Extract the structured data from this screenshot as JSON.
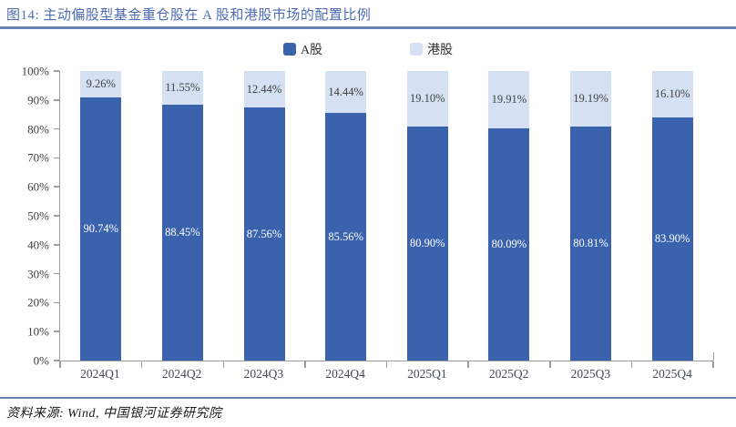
{
  "title": "图14:  主动偏股型基金重仓股在 A 股和港股市场的配置比例",
  "source": "资料来源:  Wind, 中国银河证券研究院",
  "colors": {
    "a_share_bar": "#3B63AD",
    "hk_share_bar": "#D5E0F2",
    "title_text": "#4C6CB1",
    "divider_rule": "#6B81B6",
    "axis_line": "#9D9D9D",
    "a_share_label": "#FFFFFF",
    "hk_share_label": "#404040"
  },
  "chart_data": {
    "type": "bar",
    "stacked": true,
    "title": "图14: 主动偏股型基金重仓股在 A 股和港股市场的配置比例",
    "categories": [
      "2024Q1",
      "2024Q2",
      "2024Q3",
      "2024Q4",
      "2025Q1",
      "2025Q2",
      "2025Q3",
      "2025Q4"
    ],
    "series": [
      {
        "name": "A股",
        "color": "#3B63AD",
        "values": [
          90.74,
          88.45,
          87.56,
          85.56,
          80.9,
          80.09,
          80.81,
          83.9
        ],
        "labels": [
          "90.74%",
          "88.45%",
          "87.56%",
          "85.56%",
          "80.90%",
          "80.09%",
          "80.81%",
          "83.90%"
        ]
      },
      {
        "name": "港股",
        "color": "#D5E0F2",
        "values": [
          9.26,
          11.55,
          12.44,
          14.44,
          19.1,
          19.91,
          19.19,
          16.1
        ],
        "labels": [
          "9.26%",
          "11.55%",
          "12.44%",
          "14.44%",
          "19.10%",
          "19.91%",
          "19.19%",
          "16.10%"
        ]
      }
    ],
    "ylim": [
      0,
      100
    ],
    "y_tick_step": 10,
    "y_tick_labels": [
      "0%",
      "10%",
      "20%",
      "30%",
      "40%",
      "50%",
      "60%",
      "70%",
      "80%",
      "90%",
      "100%"
    ],
    "grid": false,
    "legend_position": "top"
  }
}
